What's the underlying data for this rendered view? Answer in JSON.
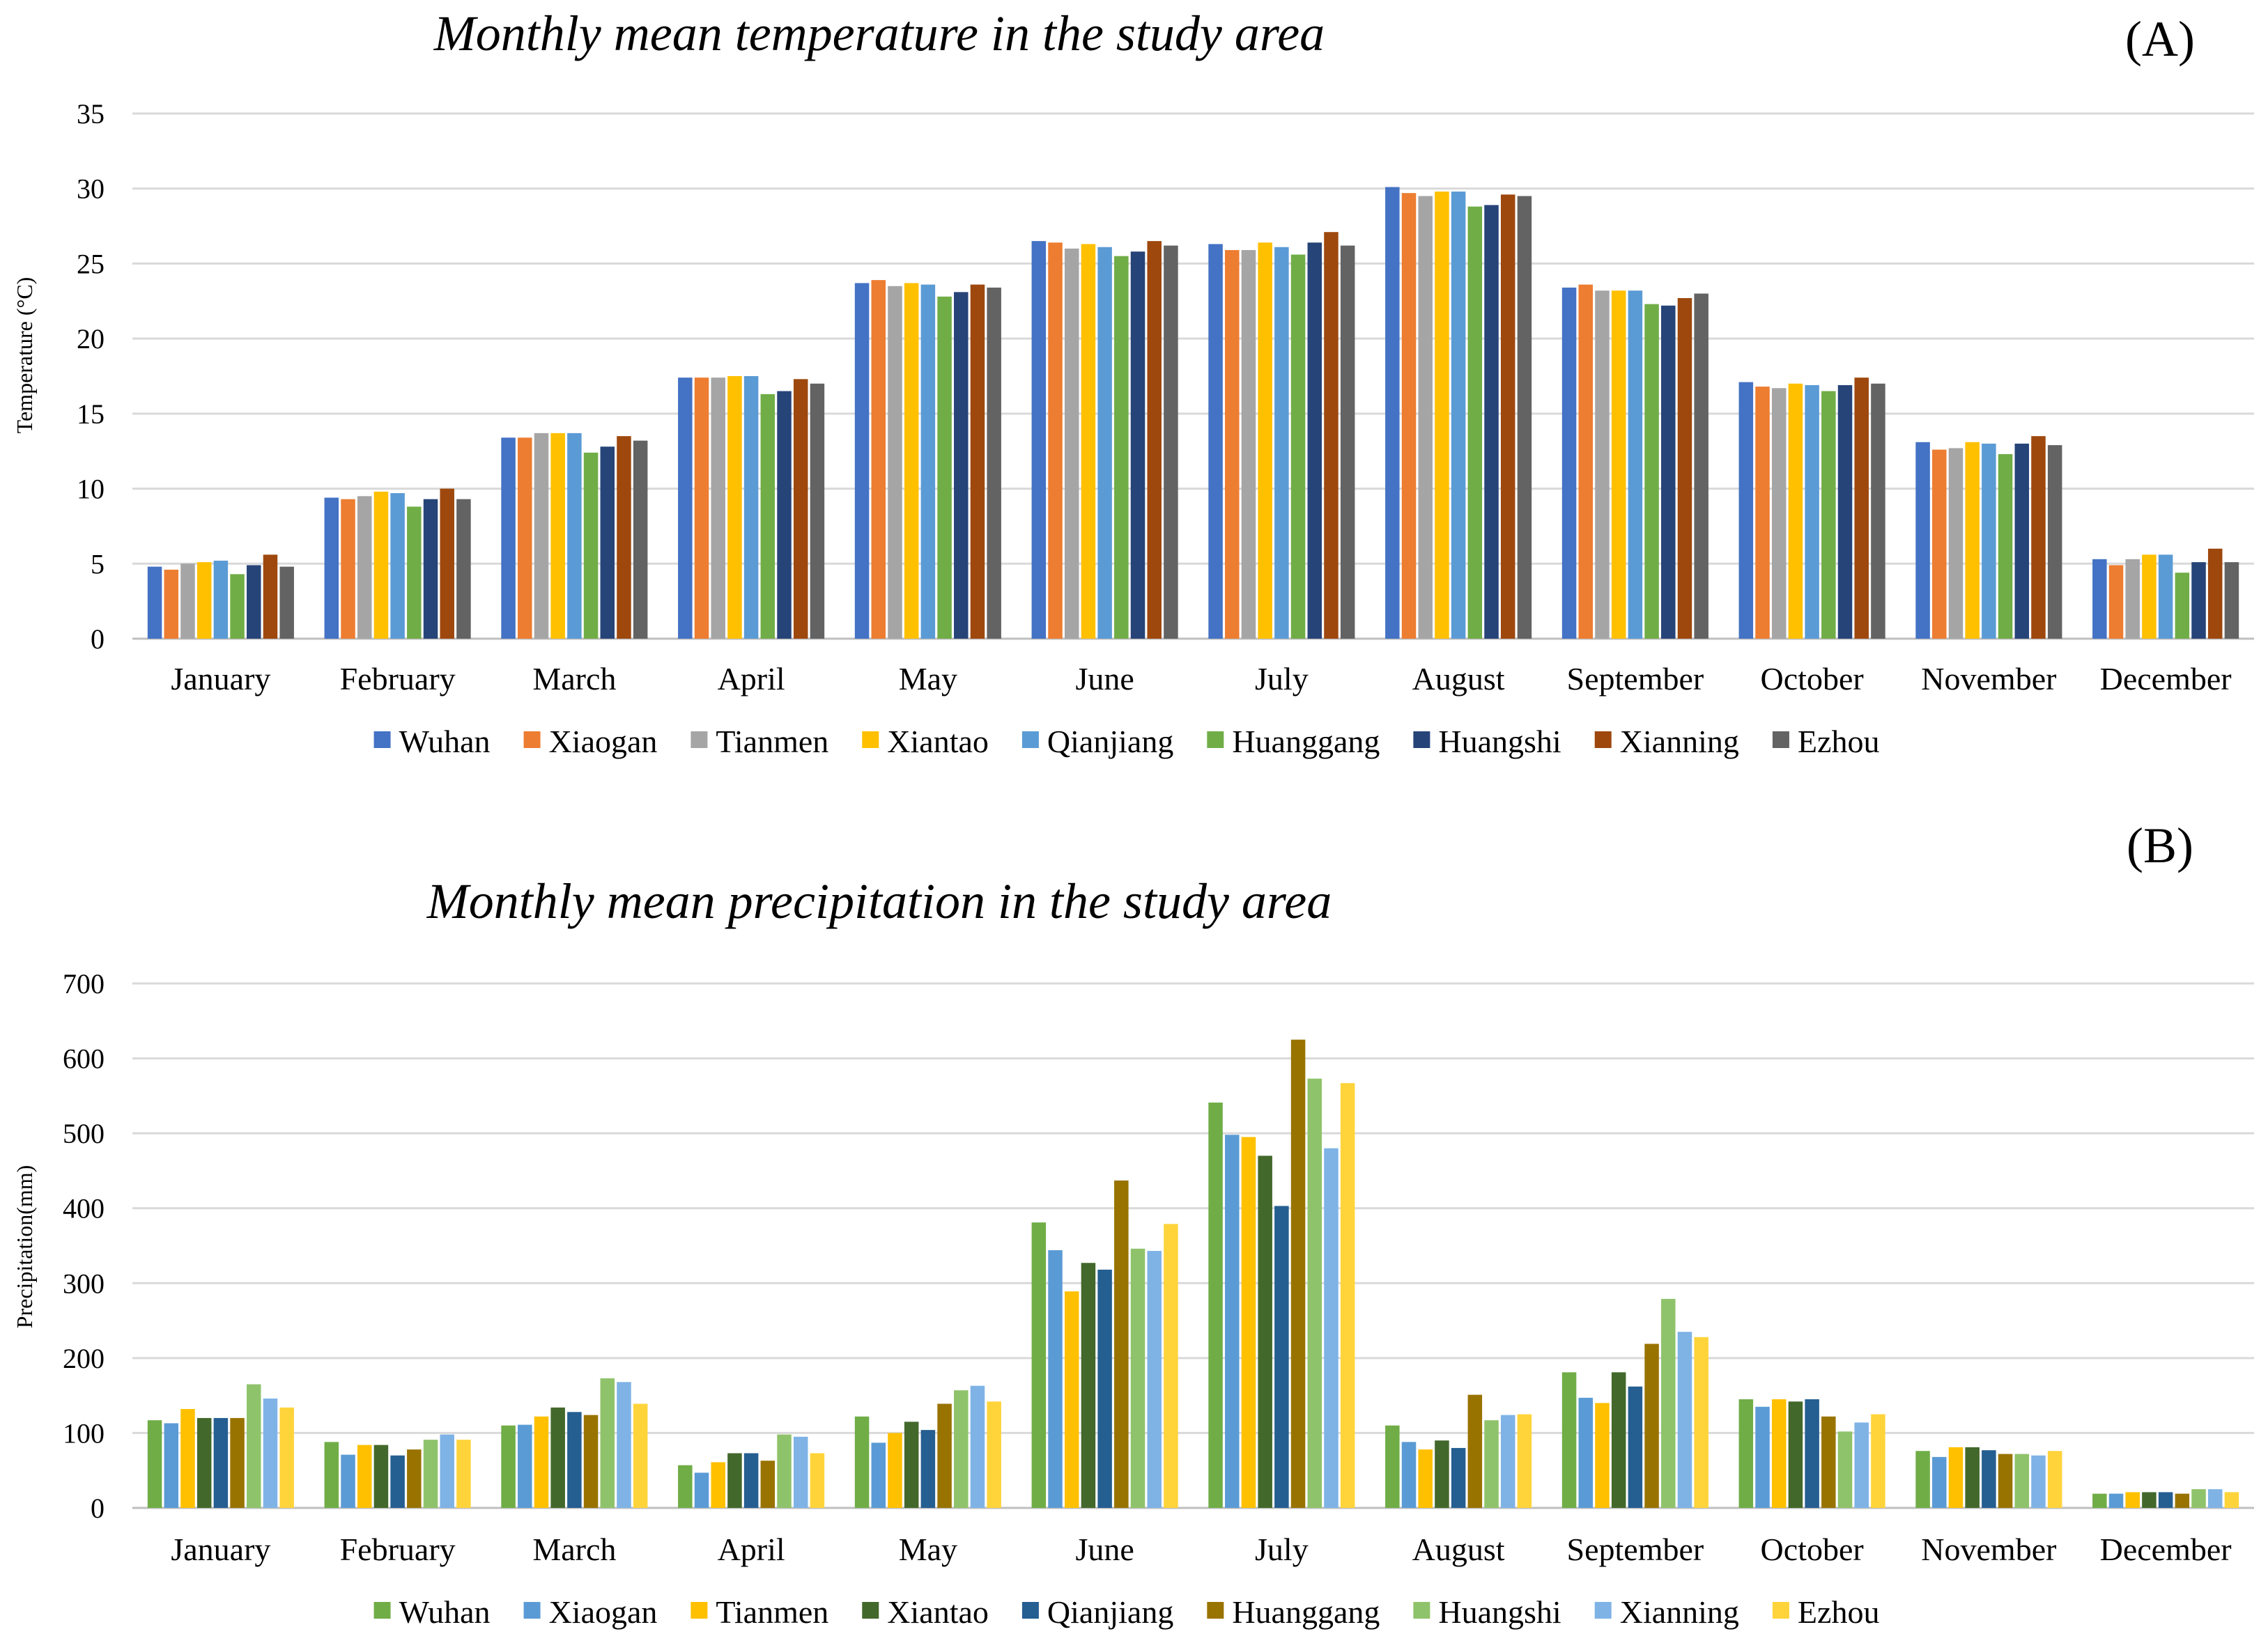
{
  "chart_data": [
    {
      "type": "bar",
      "panel_label": "(A)",
      "title": "Monthly mean temperature in the study area",
      "xlabel": "",
      "ylabel": "Temperature (°C)",
      "ylim": [
        0,
        35
      ],
      "yticks": [
        0,
        5,
        10,
        15,
        20,
        25,
        30,
        35
      ],
      "grid": true,
      "legend_position": "bottom",
      "categories": [
        "January",
        "February",
        "March",
        "April",
        "May",
        "June",
        "July",
        "August",
        "September",
        "October",
        "November",
        "December"
      ],
      "series": [
        {
          "name": "Wuhan",
          "color": "#4472c4",
          "values": [
            4.8,
            9.4,
            13.4,
            17.4,
            23.7,
            26.5,
            26.3,
            30.1,
            23.4,
            17.1,
            13.1,
            5.3
          ]
        },
        {
          "name": "Xiaogan",
          "color": "#ed7d31",
          "values": [
            4.6,
            9.3,
            13.4,
            17.4,
            23.9,
            26.4,
            25.9,
            29.7,
            23.6,
            16.8,
            12.6,
            4.9
          ]
        },
        {
          "name": "Tianmen",
          "color": "#a5a5a5",
          "values": [
            5.0,
            9.5,
            13.7,
            17.4,
            23.5,
            26.0,
            25.9,
            29.5,
            23.2,
            16.7,
            12.7,
            5.3
          ]
        },
        {
          "name": "Xiantao",
          "color": "#ffc000",
          "values": [
            5.1,
            9.8,
            13.7,
            17.5,
            23.7,
            26.3,
            26.4,
            29.8,
            23.2,
            17.0,
            13.1,
            5.6
          ]
        },
        {
          "name": "Qianjiang",
          "color": "#5b9bd5",
          "values": [
            5.2,
            9.7,
            13.7,
            17.5,
            23.6,
            26.1,
            26.1,
            29.8,
            23.2,
            16.9,
            13.0,
            5.6
          ]
        },
        {
          "name": "Huanggang",
          "color": "#70ad47",
          "values": [
            4.3,
            8.8,
            12.4,
            16.3,
            22.8,
            25.5,
            25.6,
            28.8,
            22.3,
            16.5,
            12.3,
            4.4
          ]
        },
        {
          "name": "Huangshi",
          "color": "#264478",
          "values": [
            4.9,
            9.3,
            12.8,
            16.5,
            23.1,
            25.8,
            26.4,
            28.9,
            22.2,
            16.9,
            13.0,
            5.1
          ]
        },
        {
          "name": "Xianning",
          "color": "#9e480e",
          "values": [
            5.6,
            10.0,
            13.5,
            17.3,
            23.6,
            26.5,
            27.1,
            29.6,
            22.7,
            17.4,
            13.5,
            6.0
          ]
        },
        {
          "name": "Ezhou",
          "color": "#636363",
          "values": [
            4.8,
            9.3,
            13.2,
            17.0,
            23.4,
            26.2,
            26.2,
            29.5,
            23.0,
            17.0,
            12.9,
            5.1
          ]
        }
      ]
    },
    {
      "type": "bar",
      "panel_label": "(B)",
      "title": "Monthly mean precipitation in the study area",
      "xlabel": "",
      "ylabel": "Precipitation(mm)",
      "ylim": [
        0,
        700
      ],
      "yticks": [
        0,
        100,
        200,
        300,
        400,
        500,
        600,
        700
      ],
      "grid": true,
      "legend_position": "bottom",
      "categories": [
        "January",
        "February",
        "March",
        "April",
        "May",
        "June",
        "July",
        "August",
        "September",
        "October",
        "November",
        "December"
      ],
      "series": [
        {
          "name": "Wuhan",
          "color": "#70ad47",
          "values": [
            117,
            88,
            110,
            57,
            122,
            381,
            541,
            110,
            181,
            145,
            76,
            19
          ]
        },
        {
          "name": "Xiaogan",
          "color": "#5b9bd5",
          "values": [
            113,
            71,
            111,
            47,
            87,
            344,
            498,
            88,
            147,
            135,
            68,
            19
          ]
        },
        {
          "name": "Tianmen",
          "color": "#ffc000",
          "values": [
            132,
            84,
            122,
            61,
            100,
            289,
            495,
            78,
            140,
            145,
            81,
            21
          ]
        },
        {
          "name": "Xiantao",
          "color": "#43682b",
          "values": [
            120,
            84,
            134,
            73,
            115,
            327,
            470,
            90,
            181,
            142,
            81,
            21
          ]
        },
        {
          "name": "Qianjiang",
          "color": "#255e91",
          "values": [
            120,
            70,
            128,
            73,
            104,
            318,
            403,
            80,
            162,
            145,
            77,
            21
          ]
        },
        {
          "name": "Huanggang",
          "color": "#997300",
          "values": [
            120,
            78,
            124,
            63,
            139,
            437,
            625,
            151,
            219,
            122,
            72,
            19
          ]
        },
        {
          "name": "Huangshi",
          "color": "#8fc36b",
          "values": [
            165,
            91,
            173,
            98,
            157,
            346,
            573,
            117,
            279,
            102,
            72,
            25
          ]
        },
        {
          "name": "Xianning",
          "color": "#7fb3e6",
          "values": [
            146,
            98,
            168,
            95,
            163,
            343,
            480,
            124,
            235,
            114,
            70,
            25
          ]
        },
        {
          "name": "Ezhou",
          "color": "#ffd43b",
          "values": [
            134,
            91,
            139,
            73,
            142,
            379,
            567,
            125,
            228,
            125,
            76,
            21
          ]
        }
      ]
    }
  ]
}
